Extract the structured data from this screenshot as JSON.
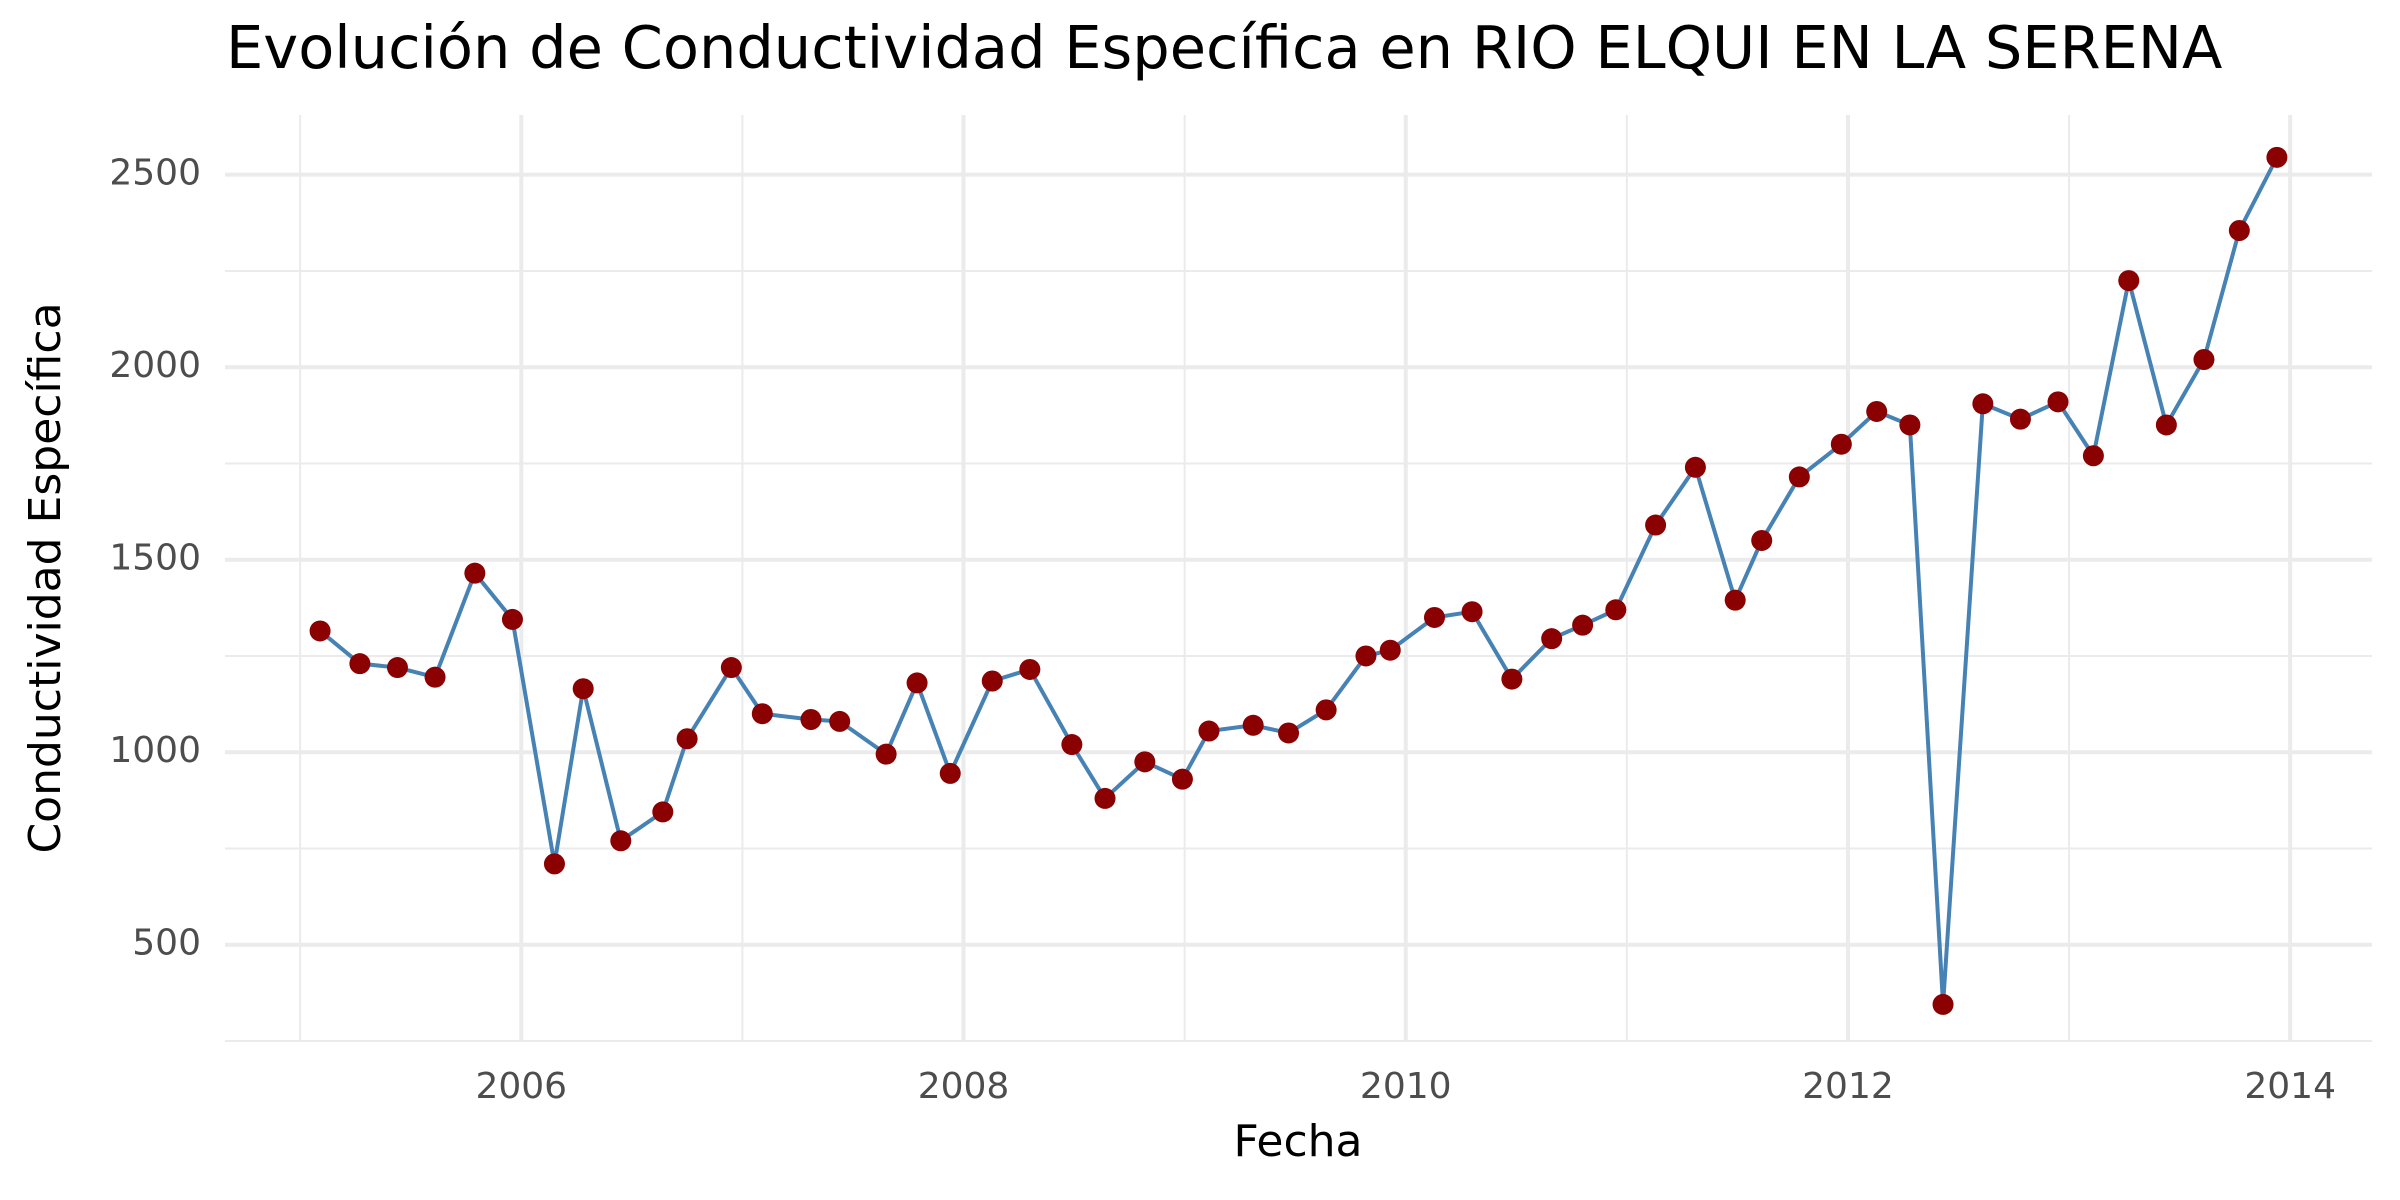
{
  "chart_data": {
    "type": "line",
    "title": "Evolución de Conductividad Específica en RIO ELQUI EN LA SERENA",
    "x_label": "Fecha",
    "y_label": "Conductividad Específica",
    "line_color": "#4682b4",
    "point_color": "#8b0000",
    "grid": true,
    "xlim": [
      2004.66,
      2014.37
    ],
    "xticks": [
      2006,
      2008,
      2010,
      2012,
      2014
    ],
    "ylim": [
      250,
      2655
    ],
    "yticks": [
      500,
      1000,
      1500,
      2000,
      2500
    ],
    "x": [
      2005.09,
      2005.27,
      2005.44,
      2005.61,
      2005.79,
      2005.96,
      2006.15,
      2006.28,
      2006.45,
      2006.64,
      2006.75,
      2006.95,
      2007.09,
      2007.31,
      2007.44,
      2007.65,
      2007.79,
      2007.94,
      2008.13,
      2008.3,
      2008.49,
      2008.64,
      2008.82,
      2008.99,
      2009.11,
      2009.31,
      2009.47,
      2009.64,
      2009.82,
      2009.93,
      2010.13,
      2010.3,
      2010.48,
      2010.66,
      2010.8,
      2010.95,
      2011.13,
      2011.31,
      2011.49,
      2011.61,
      2011.78,
      2011.97,
      2012.13,
      2012.28,
      2012.43,
      2012.61,
      2012.78,
      2012.95,
      2013.11,
      2013.27,
      2013.44,
      2013.61,
      2013.77,
      2013.94
    ],
    "values": [
      1315,
      1230,
      1220,
      1195,
      1465,
      1345,
      710,
      1165,
      770,
      845,
      1035,
      1220,
      1100,
      1085,
      1080,
      995,
      1180,
      945,
      1185,
      1215,
      1020,
      880,
      975,
      930,
      1055,
      1070,
      1050,
      1110,
      1250,
      1265,
      1350,
      1365,
      1190,
      1295,
      1330,
      1370,
      1590,
      1740,
      1395,
      1550,
      1715,
      1800,
      1885,
      1850,
      345,
      1905,
      1865,
      1910,
      1770,
      2225,
      1850,
      2020,
      2355,
      2545
    ]
  }
}
